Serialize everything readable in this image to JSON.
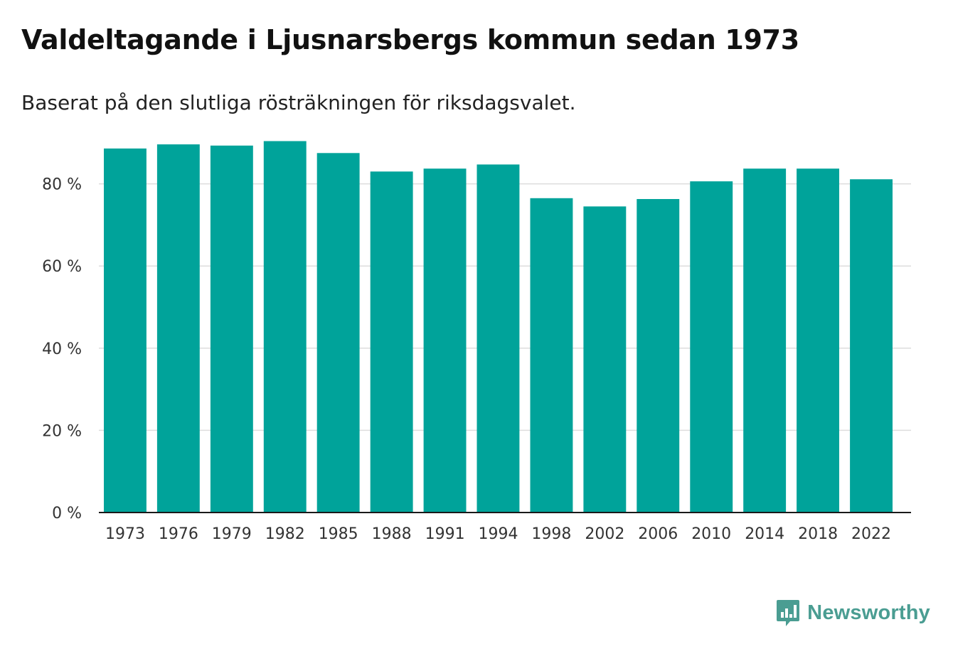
{
  "header": {
    "title": "Valdeltagande i Ljusnarsbergs kommun sedan 1973",
    "subtitle": "Baserat på den slutliga rösträkningen för riksdagsvalet."
  },
  "brand": {
    "name": "Newsworthy",
    "icon": "bar-chart-speech-bubble-icon",
    "color": "#4a9d92"
  },
  "chart_data": {
    "type": "bar",
    "title": "Valdeltagande i Ljusnarsbergs kommun sedan 1973",
    "subtitle": "Baserat på den slutliga rösträkningen för riksdagsvalet.",
    "xlabel": "",
    "ylabel": "",
    "categories": [
      "1973",
      "1976",
      "1979",
      "1982",
      "1985",
      "1988",
      "1991",
      "1994",
      "1998",
      "2002",
      "2006",
      "2010",
      "2014",
      "2018",
      "2022"
    ],
    "values": [
      88.6,
      89.6,
      89.3,
      90.4,
      87.5,
      83.0,
      83.7,
      84.7,
      76.5,
      74.5,
      76.3,
      80.6,
      83.7,
      83.7,
      81.1
    ],
    "ylim": [
      0,
      100
    ],
    "yticks": [
      0,
      20,
      40,
      60,
      80
    ],
    "ytick_labels": [
      "0 %",
      "20 %",
      "40 %",
      "60 %",
      "80 %"
    ],
    "grid": true,
    "bar_color": "#00a39a"
  }
}
